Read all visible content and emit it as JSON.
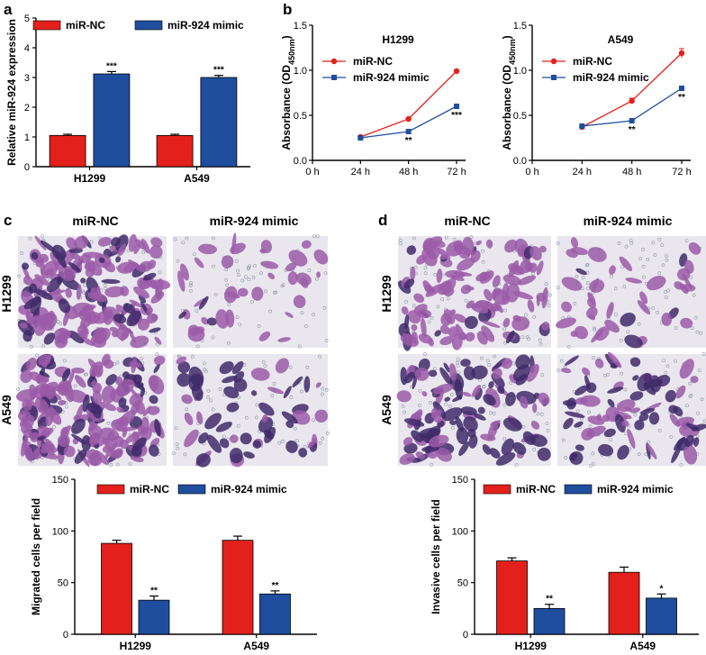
{
  "panels": {
    "a": "a",
    "b": "b",
    "c": "c",
    "d": "d"
  },
  "colors": {
    "nc": "#e3201b",
    "mimic": "#1f4e9e"
  },
  "micrographs": {
    "col_left": "miR-NC",
    "col_right": "miR-924 mimic",
    "row_top": "H1299",
    "row_bottom": "A549",
    "cell_color": "#9b5aa8",
    "bg_color": "#e9e6ee",
    "dark_cell_color": "#3f2a6a"
  },
  "chart_data": [
    {
      "id": "a",
      "type": "bar",
      "title": "",
      "ylabel": "Relative miR-924 expression",
      "xlabel": "",
      "ylim": [
        0,
        5
      ],
      "yticks": [
        "0",
        "1",
        "2",
        "3",
        "4",
        "5"
      ],
      "categories": [
        "H1299",
        "A549"
      ],
      "series": [
        {
          "name": "miR-NC",
          "values": [
            1.05,
            1.05
          ],
          "errors": [
            0.04,
            0.04
          ],
          "sig": [
            "",
            ""
          ]
        },
        {
          "name": "miR-924 mimic",
          "values": [
            3.12,
            3.0
          ],
          "errors": [
            0.08,
            0.07
          ],
          "sig": [
            "***",
            "***"
          ]
        }
      ]
    },
    {
      "id": "b1",
      "type": "line",
      "title": "H1299",
      "ylabel": "Absorbance (OD450nm)",
      "ylabel_main": "Absorbance (OD",
      "ylabel_sub": "450nm",
      "ylabel_end": ")",
      "ylim": [
        0,
        1.5
      ],
      "yticks": [
        "0.0",
        "0.5",
        "1.0",
        "1.5"
      ],
      "x": [
        "0 h",
        "24 h",
        "48 h",
        "72 h"
      ],
      "series": [
        {
          "name": "miR-NC",
          "values": [
            null,
            0.26,
            0.46,
            0.99
          ],
          "errors": [
            0,
            0.01,
            0.01,
            0.01
          ],
          "sig": [
            "",
            "",
            "",
            ""
          ]
        },
        {
          "name": "miR-924 mimic",
          "values": [
            null,
            0.25,
            0.32,
            0.6
          ],
          "errors": [
            0,
            0.01,
            0.01,
            0.01
          ],
          "sig": [
            "",
            "",
            "**",
            "***"
          ]
        }
      ]
    },
    {
      "id": "b2",
      "type": "line",
      "title": "A549",
      "ylabel": "Absorbance (OD450nm)",
      "ylabel_main": "Absorbance (OD",
      "ylabel_sub": "450nm",
      "ylabel_end": ")",
      "ylim": [
        0,
        1.5
      ],
      "yticks": [
        "0.0",
        "0.5",
        "1.0",
        "1.5"
      ],
      "x": [
        "0 h",
        "24 h",
        "48 h",
        "72 h"
      ],
      "series": [
        {
          "name": "miR-NC",
          "values": [
            null,
            0.37,
            0.66,
            1.19
          ],
          "errors": [
            0,
            0.01,
            0.03,
            0.05
          ],
          "sig": [
            "",
            "",
            "",
            ""
          ]
        },
        {
          "name": "miR-924 mimic",
          "values": [
            null,
            0.38,
            0.44,
            0.8
          ],
          "errors": [
            0,
            0.01,
            0.01,
            0.02
          ],
          "sig": [
            "",
            "",
            "**",
            "**"
          ]
        }
      ]
    },
    {
      "id": "c",
      "type": "bar",
      "title": "",
      "ylabel": "Migrated cells per field",
      "ylim": [
        0,
        150
      ],
      "yticks": [
        "0",
        "50",
        "100",
        "150"
      ],
      "categories": [
        "H1299",
        "A549"
      ],
      "series": [
        {
          "name": "miR-NC",
          "values": [
            88,
            91
          ],
          "errors": [
            3,
            4
          ],
          "sig": [
            "",
            ""
          ]
        },
        {
          "name": "miR-924 mimic",
          "values": [
            33,
            39
          ],
          "errors": [
            4,
            3
          ],
          "sig": [
            "**",
            "**"
          ]
        }
      ]
    },
    {
      "id": "d",
      "type": "bar",
      "title": "",
      "ylabel": "Invasive cells per field",
      "ylim": [
        0,
        150
      ],
      "yticks": [
        "0",
        "50",
        "100",
        "150"
      ],
      "categories": [
        "H1299",
        "A549"
      ],
      "series": [
        {
          "name": "miR-NC",
          "values": [
            71,
            60
          ],
          "errors": [
            3,
            5
          ],
          "sig": [
            "",
            ""
          ]
        },
        {
          "name": "miR-924 mimic",
          "values": [
            25,
            35
          ],
          "errors": [
            4,
            4
          ],
          "sig": [
            "**",
            "*"
          ]
        }
      ]
    }
  ]
}
